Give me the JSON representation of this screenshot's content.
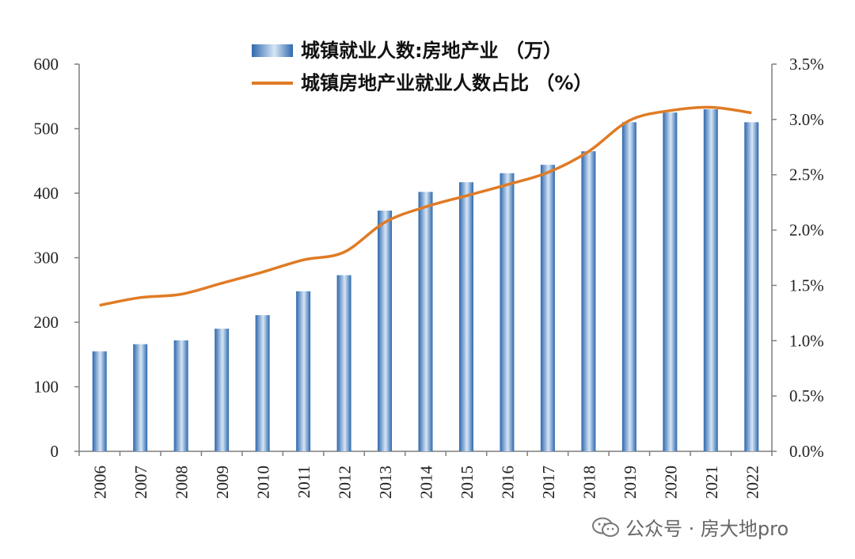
{
  "chart_data": {
    "type": "bar+line",
    "categories": [
      "2006",
      "2007",
      "2008",
      "2009",
      "2010",
      "2011",
      "2012",
      "2013",
      "2014",
      "2015",
      "2016",
      "2017",
      "2018",
      "2019",
      "2020",
      "2021",
      "2022"
    ],
    "series": [
      {
        "name": "城镇就业人数:房地产业 （万）",
        "type": "bar",
        "axis": "left",
        "values": [
          155,
          166,
          172,
          190,
          211,
          248,
          273,
          373,
          402,
          417,
          431,
          444,
          465,
          510,
          525,
          530,
          510
        ]
      },
      {
        "name": "城镇房地产业就业人数占比 （%）",
        "type": "line",
        "axis": "right",
        "values": [
          1.32,
          1.39,
          1.42,
          1.52,
          1.62,
          1.73,
          1.8,
          2.07,
          2.21,
          2.31,
          2.41,
          2.52,
          2.71,
          2.99,
          3.08,
          3.11,
          3.06
        ]
      }
    ],
    "y_left": {
      "ylim": [
        0,
        600
      ],
      "ticks": [
        "0",
        "100",
        "200",
        "300",
        "400",
        "500",
        "600"
      ]
    },
    "y_right": {
      "ylim": [
        0,
        3.5
      ],
      "ticks": [
        "0.0%",
        "0.5%",
        "1.0%",
        "1.5%",
        "2.0%",
        "2.5%",
        "3.0%",
        "3.5%"
      ]
    },
    "legend_position": "top-center",
    "grid": false,
    "colors": {
      "bar": "#3a78bf",
      "bar_light": "#cfe0f3",
      "line": "#e07b25",
      "axis": "#7f7f7f"
    }
  },
  "watermark": {
    "text": "公众号 · 房大地pro",
    "icon": "wechat-icon"
  }
}
